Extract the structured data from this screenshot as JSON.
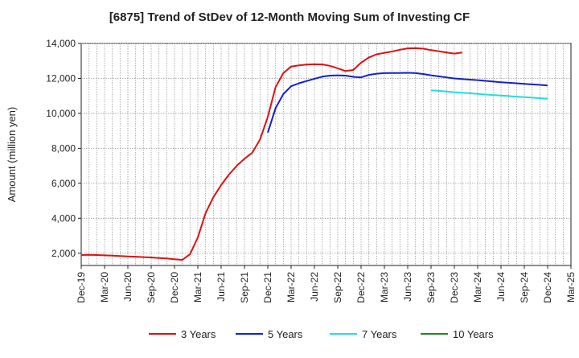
{
  "chart_data": {
    "type": "line",
    "title": "[6875]  Trend of StDev of 12-Month Moving Sum of Investing CF",
    "xlabel": "",
    "ylabel": "Amount (million yen)",
    "ylim": [
      1300,
      14000
    ],
    "y_ticks": [
      2000,
      4000,
      6000,
      8000,
      10000,
      12000,
      14000
    ],
    "y_tick_labels": [
      "2,000",
      "4,000",
      "6,000",
      "8,000",
      "10,000",
      "12,000",
      "14,000"
    ],
    "x_start": "2019-12",
    "x_end": "2025-03",
    "x_tick_labels": [
      "Dec-19",
      "Mar-20",
      "Jun-20",
      "Sep-20",
      "Dec-20",
      "Mar-21",
      "Jun-21",
      "Sep-21",
      "Dec-21",
      "Mar-22",
      "Jun-22",
      "Sep-22",
      "Dec-22",
      "Mar-23",
      "Jun-23",
      "Sep-23",
      "Dec-23",
      "Mar-24",
      "Jun-24",
      "Sep-24",
      "Dec-24",
      "Mar-25"
    ],
    "grid": true,
    "legend_position": "bottom",
    "series": [
      {
        "name": "3 Years",
        "color": "#dd1111",
        "points": [
          [
            "2019-12",
            1900
          ],
          [
            "2020-01",
            1910
          ],
          [
            "2020-02",
            1900
          ],
          [
            "2020-03",
            1880
          ],
          [
            "2020-04",
            1860
          ],
          [
            "2020-05",
            1840
          ],
          [
            "2020-06",
            1820
          ],
          [
            "2020-07",
            1800
          ],
          [
            "2020-08",
            1780
          ],
          [
            "2020-09",
            1760
          ],
          [
            "2020-10",
            1730
          ],
          [
            "2020-11",
            1700
          ],
          [
            "2020-12",
            1660
          ],
          [
            "2021-01",
            1620
          ],
          [
            "2021-02",
            1950
          ],
          [
            "2021-03",
            2900
          ],
          [
            "2021-04",
            4300
          ],
          [
            "2021-05",
            5200
          ],
          [
            "2021-06",
            5900
          ],
          [
            "2021-07",
            6500
          ],
          [
            "2021-08",
            7000
          ],
          [
            "2021-09",
            7400
          ],
          [
            "2021-10",
            7750
          ],
          [
            "2021-11",
            8500
          ],
          [
            "2021-12",
            9800
          ],
          [
            "2022-01",
            11500
          ],
          [
            "2022-02",
            12300
          ],
          [
            "2022-03",
            12680
          ],
          [
            "2022-04",
            12750
          ],
          [
            "2022-05",
            12790
          ],
          [
            "2022-06",
            12810
          ],
          [
            "2022-07",
            12800
          ],
          [
            "2022-08",
            12720
          ],
          [
            "2022-09",
            12580
          ],
          [
            "2022-10",
            12420
          ],
          [
            "2022-11",
            12480
          ],
          [
            "2022-12",
            12900
          ],
          [
            "2023-01",
            13200
          ],
          [
            "2023-02",
            13380
          ],
          [
            "2023-03",
            13460
          ],
          [
            "2023-04",
            13540
          ],
          [
            "2023-05",
            13640
          ],
          [
            "2023-06",
            13720
          ],
          [
            "2023-07",
            13730
          ],
          [
            "2023-08",
            13700
          ],
          [
            "2023-09",
            13620
          ],
          [
            "2023-10",
            13550
          ],
          [
            "2023-11",
            13480
          ],
          [
            "2023-12",
            13420
          ],
          [
            "2023-13",
            13480
          ]
        ]
      },
      {
        "name": "5 Years",
        "color": "#1122cc",
        "points": [
          [
            "2021-12",
            8900
          ],
          [
            "2022-01",
            10300
          ],
          [
            "2022-02",
            11100
          ],
          [
            "2022-03",
            11550
          ],
          [
            "2022-04",
            11720
          ],
          [
            "2022-05",
            11850
          ],
          [
            "2022-06",
            11980
          ],
          [
            "2022-07",
            12100
          ],
          [
            "2022-08",
            12160
          ],
          [
            "2022-09",
            12180
          ],
          [
            "2022-10",
            12160
          ],
          [
            "2022-11",
            12090
          ],
          [
            "2022-12",
            12060
          ],
          [
            "2023-01",
            12200
          ],
          [
            "2023-02",
            12270
          ],
          [
            "2023-03",
            12300
          ],
          [
            "2023-04",
            12310
          ],
          [
            "2023-05",
            12310
          ],
          [
            "2023-06",
            12320
          ],
          [
            "2023-07",
            12300
          ],
          [
            "2023-08",
            12250
          ],
          [
            "2023-09",
            12180
          ],
          [
            "2023-10",
            12120
          ],
          [
            "2023-11",
            12060
          ],
          [
            "2023-12",
            12000
          ],
          [
            "2024-01",
            11960
          ],
          [
            "2024-02",
            11930
          ],
          [
            "2024-03",
            11900
          ],
          [
            "2024-04",
            11860
          ],
          [
            "2024-05",
            11820
          ],
          [
            "2024-06",
            11780
          ],
          [
            "2024-07",
            11750
          ],
          [
            "2024-08",
            11720
          ],
          [
            "2024-09",
            11690
          ],
          [
            "2024-10",
            11660
          ],
          [
            "2024-11",
            11630
          ],
          [
            "2024-12",
            11600
          ]
        ]
      },
      {
        "name": "7 Years",
        "color": "#22dddd",
        "points": [
          [
            "2023-09",
            11320
          ],
          [
            "2023-10",
            11290
          ],
          [
            "2023-11",
            11250
          ],
          [
            "2023-12",
            11210
          ],
          [
            "2024-01",
            11180
          ],
          [
            "2024-02",
            11150
          ],
          [
            "2024-03",
            11110
          ],
          [
            "2024-04",
            11080
          ],
          [
            "2024-05",
            11050
          ],
          [
            "2024-06",
            11020
          ],
          [
            "2024-07",
            10990
          ],
          [
            "2024-08",
            10960
          ],
          [
            "2024-09",
            10930
          ],
          [
            "2024-10",
            10900
          ],
          [
            "2024-11",
            10870
          ],
          [
            "2024-12",
            10840
          ]
        ]
      },
      {
        "name": "10 Years",
        "color": "#228822",
        "points": []
      }
    ]
  }
}
